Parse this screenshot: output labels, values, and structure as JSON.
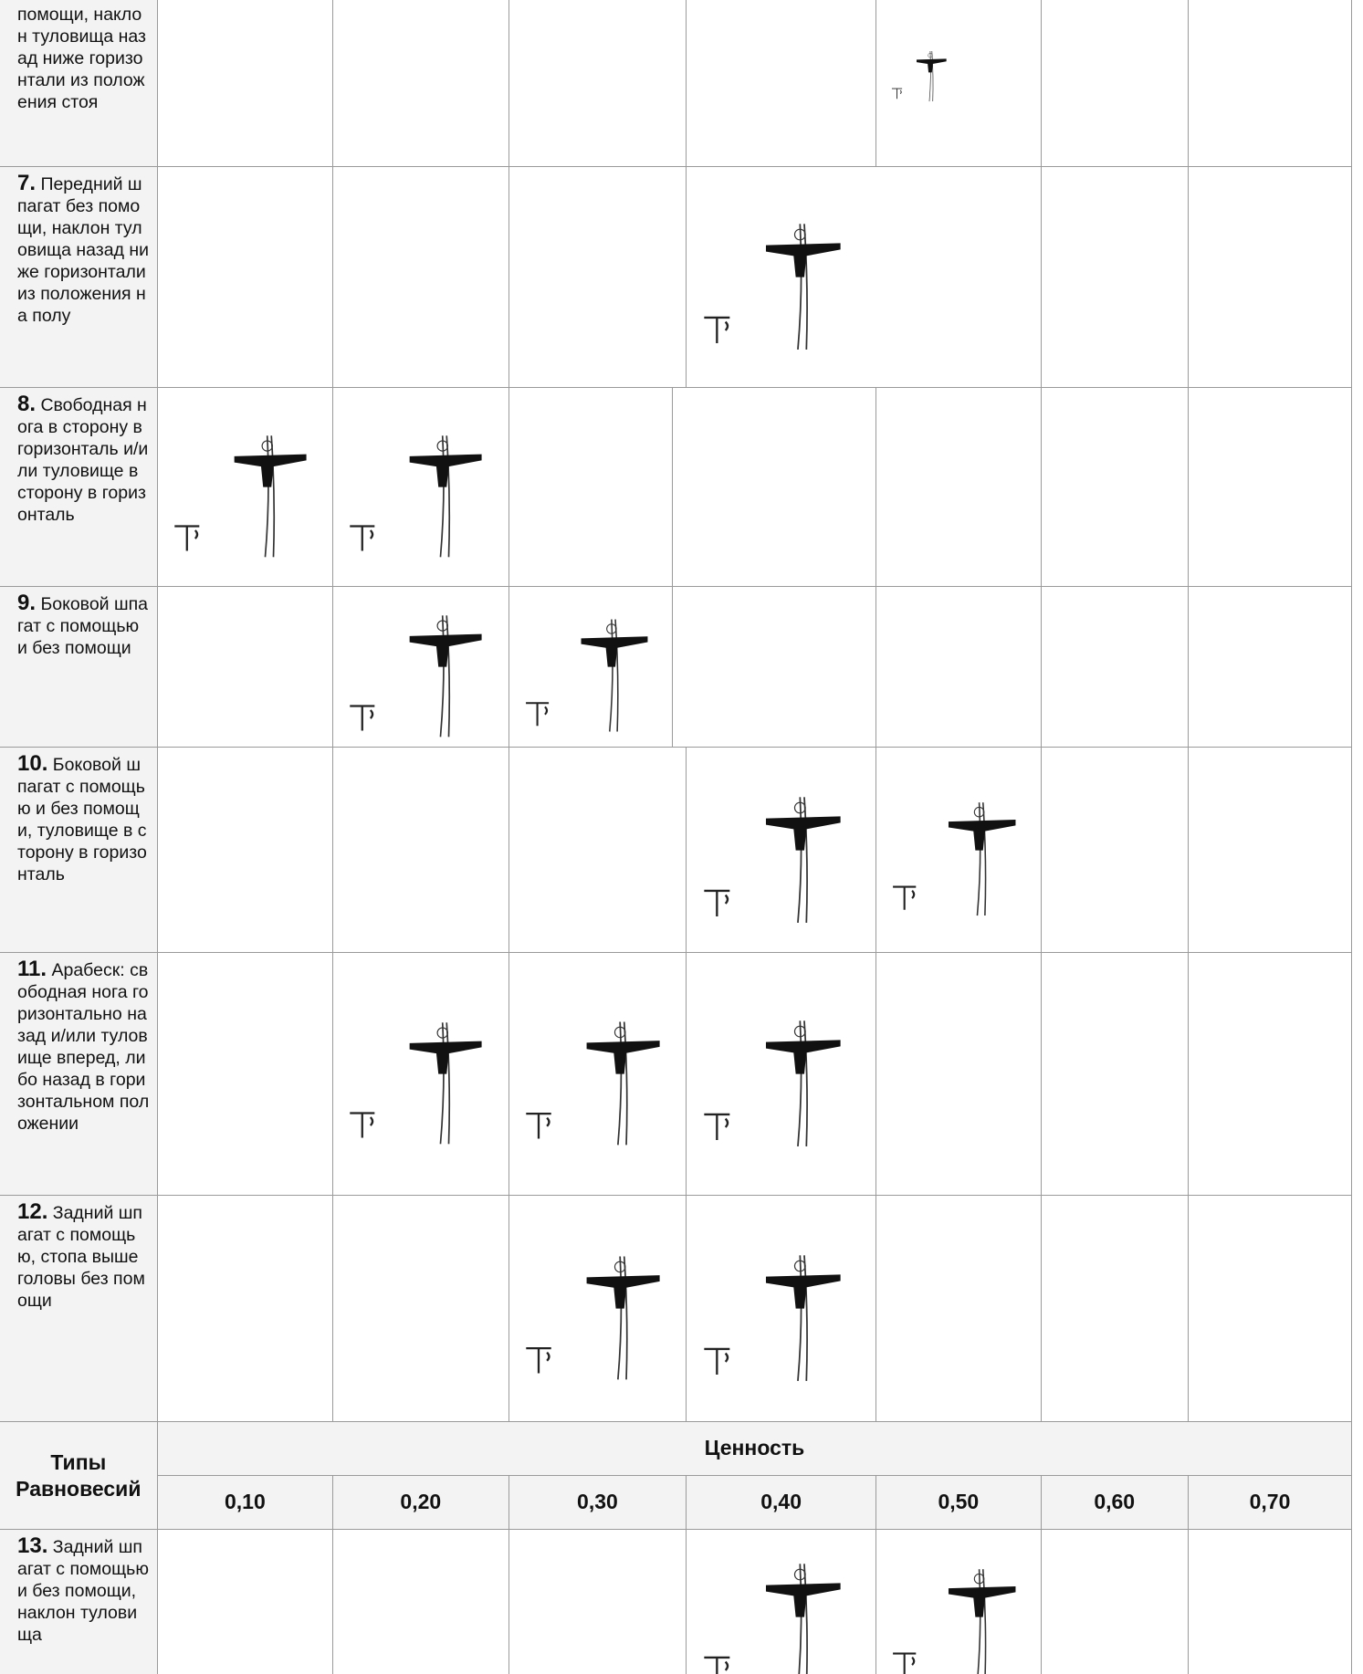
{
  "table": {
    "rows": [
      {
        "text": "помощи, наклон туловища назад ниже горизонтали из положения стоя"
      },
      {
        "number": "7.",
        "text": "Передний шпагат без помощи, наклон туловища назад ниже горизонтали из положения на полу"
      },
      {
        "number": "8.",
        "text": "Свободная нога в сторону в горизонталь и/или туловище в сторону в горизонталь"
      },
      {
        "number": "9.",
        "text": "Боковой шпагат с помощью и без помощи"
      },
      {
        "number": "10.",
        "text": "Боковой шпагат с помощью и без помощи, туловище в сторону в горизонталь"
      },
      {
        "number": "11.",
        "text": "Арабеск: свободная нога горизонтально назад и/или туловище вперед, либо назад в горизонтальном положении"
      },
      {
        "number": "12.",
        "text": "Задний шпагат с помощью, стопа выше головы без помощи"
      }
    ],
    "header": {
      "type_label": "Типы Равновесий",
      "value_label": "Ценность",
      "values": [
        "0,10",
        "0,20",
        "0,30",
        "0,40",
        "0,50",
        "0,60",
        "0,70"
      ]
    },
    "rows_after": [
      {
        "number": "13.",
        "text": "Задний шпагат с помощью и без помощи, наклон туловища"
      }
    ]
  }
}
